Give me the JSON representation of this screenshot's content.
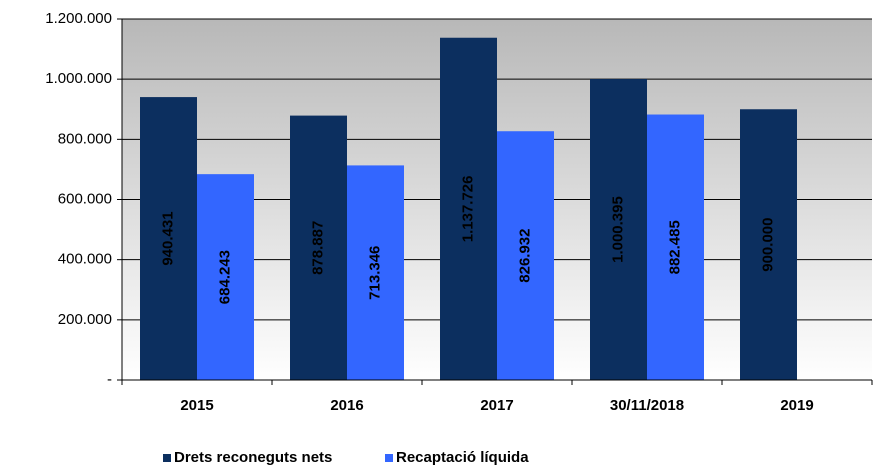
{
  "chart_data": {
    "type": "bar",
    "categories": [
      "2015",
      "2016",
      "2017",
      "30/11/2018",
      "2019"
    ],
    "series": [
      {
        "name": "Drets reconeguts nets",
        "color": "#0c2f5f",
        "values": [
          940431,
          878887,
          1137726,
          1000395,
          900000
        ],
        "value_labels": [
          "940.431",
          "878.887",
          "1.137.726",
          "1.000.395",
          "900.000"
        ]
      },
      {
        "name": "Recaptació líquida",
        "color": "#3366ff",
        "values": [
          684243,
          713346,
          826932,
          882485,
          null
        ],
        "value_labels": [
          "684.243",
          "713.346",
          "826.932",
          "882.485",
          null
        ]
      }
    ],
    "ylim": [
      0,
      1200000
    ],
    "yticks": [
      {
        "value": 0,
        "label": "-"
      },
      {
        "value": 200000,
        "label": "200.000"
      },
      {
        "value": 400000,
        "label": "400.000"
      },
      {
        "value": 600000,
        "label": "600.000"
      },
      {
        "value": 800000,
        "label": "800.000"
      },
      {
        "value": 1000000,
        "label": "1.000.000"
      },
      {
        "value": 1200000,
        "label": "1.200.000"
      }
    ],
    "grid": true,
    "legend": "bottom"
  }
}
